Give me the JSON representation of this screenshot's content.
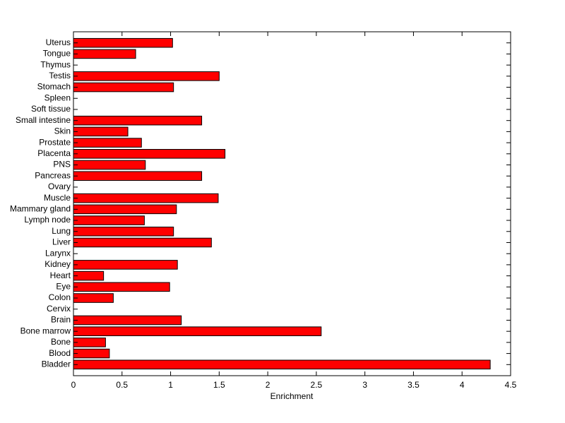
{
  "chart_data": {
    "type": "barh",
    "xlabel": "Enrichment",
    "categories": [
      "Bladder",
      "Blood",
      "Bone",
      "Bone marrow",
      "Brain",
      "Cervix",
      "Colon",
      "Eye",
      "Heart",
      "Kidney",
      "Larynx",
      "Liver",
      "Lung",
      "Lymph node",
      "Mammary gland",
      "Muscle",
      "Ovary",
      "Pancreas",
      "PNS",
      "Placenta",
      "Prostate",
      "Skin",
      "Small intestine",
      "Soft tissue",
      "Spleen",
      "Stomach",
      "Testis",
      "Thymus",
      "Tongue",
      "Uterus"
    ],
    "values": [
      4.29,
      0.37,
      0.33,
      2.55,
      1.11,
      0,
      0.41,
      0.99,
      0.31,
      1.07,
      0,
      1.42,
      1.03,
      0.73,
      1.06,
      1.49,
      0,
      1.32,
      0.74,
      1.56,
      0.7,
      0.56,
      1.32,
      0,
      0,
      1.03,
      1.5,
      0,
      0.64,
      1.02
    ],
    "color": "#ff0000",
    "xlim": [
      0,
      4.5
    ],
    "xticks": [
      0,
      0.5,
      1,
      1.5,
      2,
      2.5,
      3,
      3.5,
      4,
      4.5
    ],
    "grid": false
  }
}
